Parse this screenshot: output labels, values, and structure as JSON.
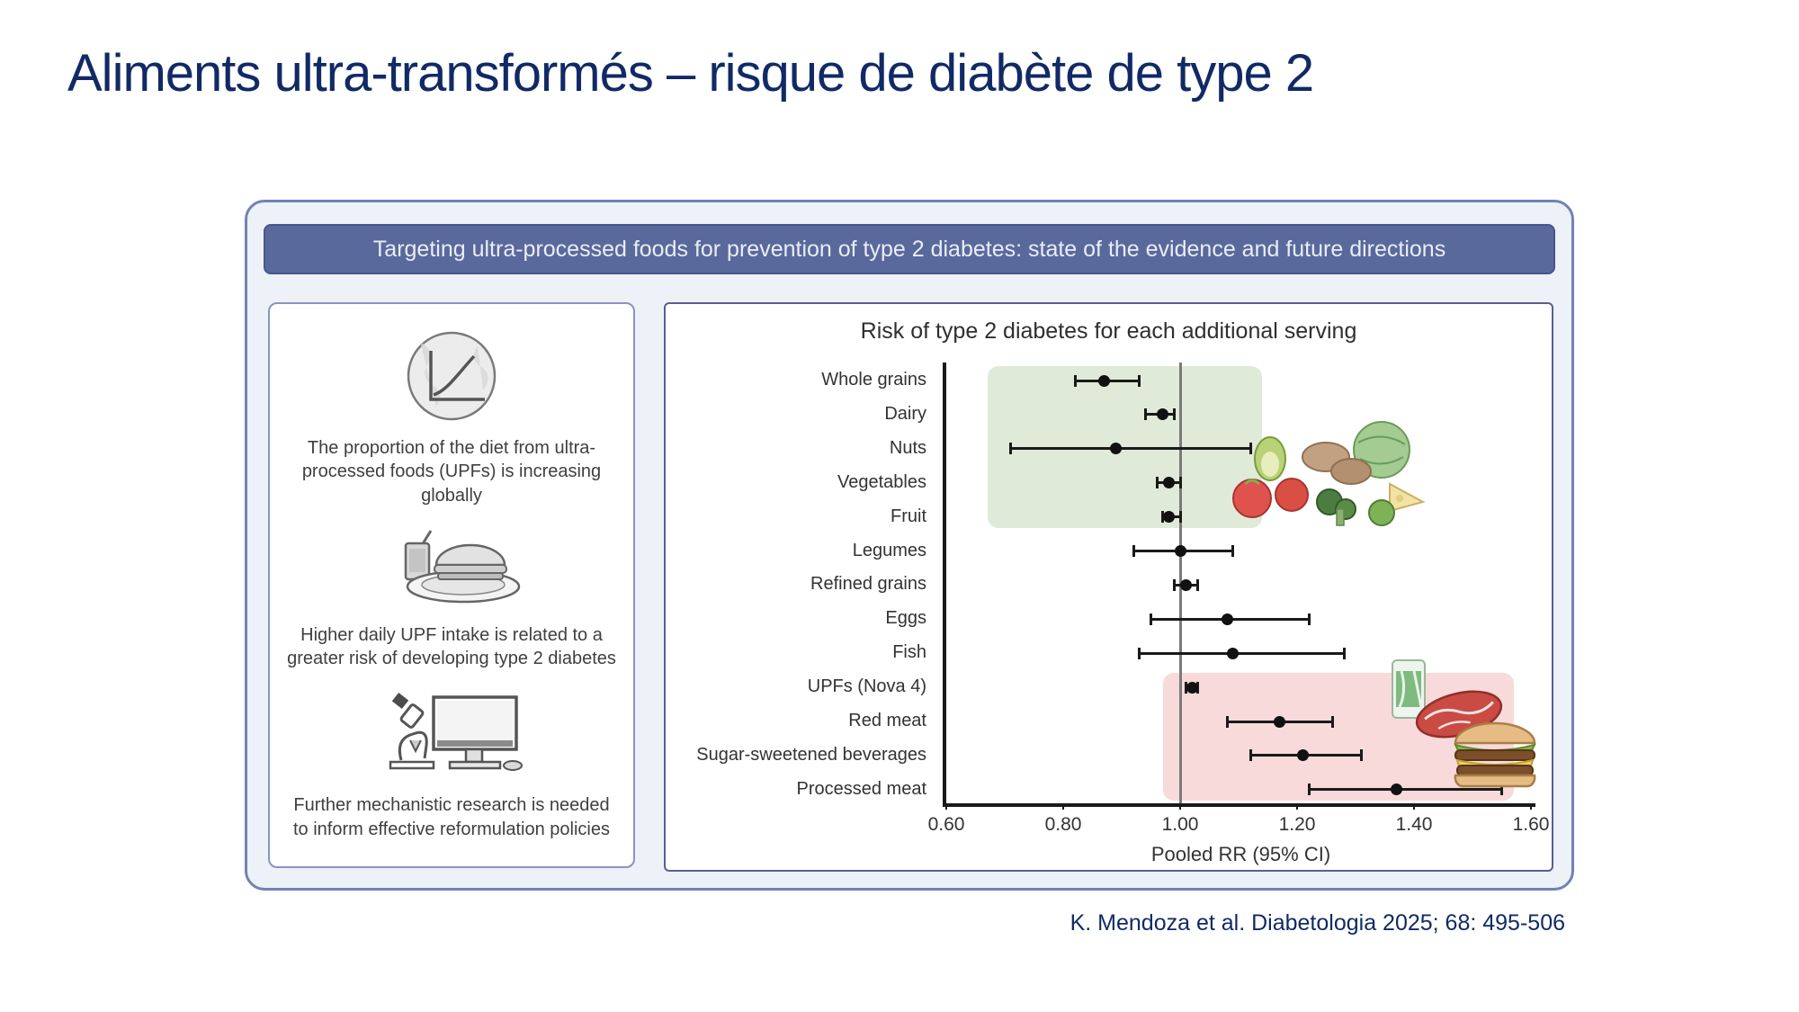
{
  "slide": {
    "title": "Aliments ultra-transformés – risque de diabète de type 2",
    "citation": "K. Mendoza et al. Diabetologia 2025; 68: 495-506"
  },
  "figure": {
    "banner": "Targeting ultra-processed foods for prevention of type 2 diabetes: state of the evidence and future directions",
    "key_points": [
      {
        "icon": "globe-trend-icon",
        "text": "The proportion of the diet from ultra-processed foods (UPFs) is increasing globally"
      },
      {
        "icon": "fast-food-icon",
        "text": "Higher daily UPF intake is related to a greater risk of developing type 2 diabetes"
      },
      {
        "icon": "research-computer-icon",
        "text": "Further mechanistic research is needed to inform effective reformulation policies"
      }
    ]
  },
  "chart_data": {
    "type": "scatter",
    "subtype": "forest-plot",
    "title": "Risk of type 2 diabetes for each additional serving",
    "xlabel": "Pooled RR (95% CI)",
    "xlim": [
      0.6,
      1.6
    ],
    "xticks": [
      0.6,
      0.8,
      1.0,
      1.2,
      1.4,
      1.6
    ],
    "reference_line": 1.0,
    "grid": false,
    "legend": "none",
    "points": [
      {
        "label": "Whole grains",
        "rr": 0.87,
        "ci_low": 0.82,
        "ci_high": 0.93
      },
      {
        "label": "Dairy",
        "rr": 0.97,
        "ci_low": 0.94,
        "ci_high": 0.99
      },
      {
        "label": "Nuts",
        "rr": 0.89,
        "ci_low": 0.71,
        "ci_high": 1.12
      },
      {
        "label": "Vegetables",
        "rr": 0.98,
        "ci_low": 0.96,
        "ci_high": 1.0
      },
      {
        "label": "Fruit",
        "rr": 0.98,
        "ci_low": 0.97,
        "ci_high": 1.0
      },
      {
        "label": "Legumes",
        "rr": 1.0,
        "ci_low": 0.92,
        "ci_high": 1.09
      },
      {
        "label": "Refined grains",
        "rr": 1.01,
        "ci_low": 0.99,
        "ci_high": 1.03
      },
      {
        "label": "Eggs",
        "rr": 1.08,
        "ci_low": 0.95,
        "ci_high": 1.22
      },
      {
        "label": "Fish",
        "rr": 1.09,
        "ci_low": 0.93,
        "ci_high": 1.28
      },
      {
        "label": "UPFs (Nova 4)",
        "rr": 1.02,
        "ci_low": 1.01,
        "ci_high": 1.03
      },
      {
        "label": "Red meat",
        "rr": 1.17,
        "ci_low": 1.08,
        "ci_high": 1.26
      },
      {
        "label": "Sugar-sweetened beverages",
        "rr": 1.21,
        "ci_low": 1.12,
        "ci_high": 1.31
      },
      {
        "label": "Processed meat",
        "rr": 1.37,
        "ci_low": 1.22,
        "ci_high": 1.55
      }
    ],
    "highlights": [
      {
        "name": "lower-risk-zone",
        "color": "#dfead9",
        "rr_from": 0.67,
        "rr_to": 1.14,
        "row_from": 0,
        "row_to": 4
      },
      {
        "name": "higher-risk-zone",
        "color": "#f8dada",
        "rr_from": 0.97,
        "rr_to": 1.57,
        "row_from": 9,
        "row_to": 12
      }
    ],
    "colors": {
      "point": "#111111",
      "reference_line": "#7a7a7a",
      "axis": "#1a1a1a"
    }
  }
}
